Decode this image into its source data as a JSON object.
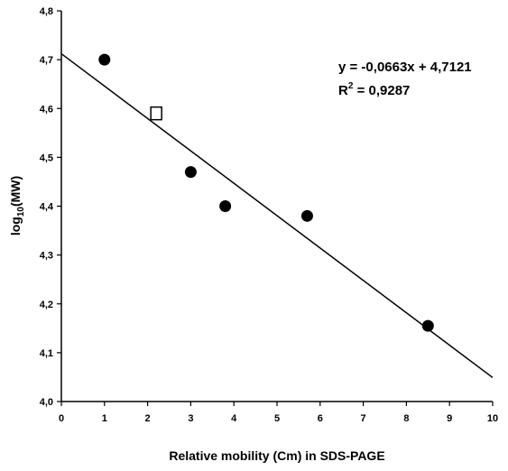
{
  "chart_data": {
    "type": "scatter",
    "xlabel": "Relative mobility (Cm) in SDS-PAGE",
    "ylabel": {
      "base": "log",
      "sub": "10",
      "rest": "(MW)"
    },
    "xlim": [
      0,
      10
    ],
    "ylim": [
      4.0,
      4.8
    ],
    "x_ticks": [
      "0",
      "1",
      "2",
      "3",
      "4",
      "5",
      "6",
      "7",
      "8",
      "9",
      "10"
    ],
    "y_ticks": [
      "4,0",
      "4,1",
      "4,2",
      "4,3",
      "4,4",
      "4,5",
      "4,6",
      "4,7",
      "4,8"
    ],
    "grid": false,
    "series": [
      {
        "marker": "filled-circle",
        "color": "#000000",
        "points": [
          {
            "x": 1.0,
            "y": 4.7
          },
          {
            "x": 3.0,
            "y": 4.47
          },
          {
            "x": 3.8,
            "y": 4.4
          },
          {
            "x": 5.7,
            "y": 4.38
          },
          {
            "x": 8.5,
            "y": 4.155
          }
        ]
      },
      {
        "marker": "open-square",
        "color": "#000000",
        "points": [
          {
            "x": 2.2,
            "y": 4.59
          }
        ]
      }
    ],
    "trendline": {
      "slope": -0.0663,
      "intercept": 4.7121,
      "x_from": 0,
      "x_to": 10
    },
    "annotations": {
      "equation": "y = -0,0663x + 4,7121",
      "r2": {
        "base": "R",
        "sup": "2",
        "rest": " = 0,9287"
      }
    }
  }
}
